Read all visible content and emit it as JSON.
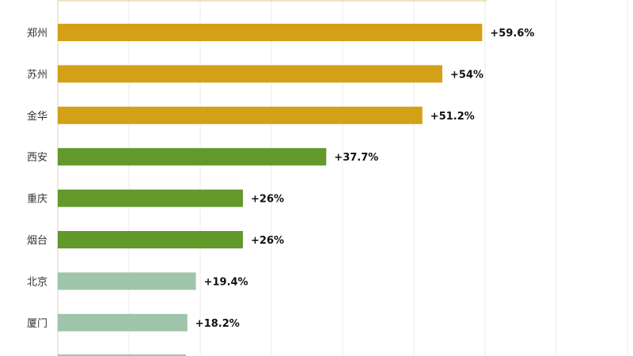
{
  "chart_data": {
    "type": "bar",
    "orientation": "horizontal",
    "categories": [
      "郑州",
      "苏州",
      "金华",
      "西安",
      "重庆",
      "烟台",
      "北京",
      "厦门"
    ],
    "values": [
      59.6,
      54,
      51.2,
      37.7,
      26,
      26,
      19.4,
      18.2
    ],
    "value_labels": [
      "+59.6%",
      "+54%",
      "+51.2%",
      "+37.7%",
      "+26%",
      "+26%",
      "+19.4%",
      "+18.2%"
    ],
    "colors": [
      "#D4A017",
      "#D4A017",
      "#D4A017",
      "#62992A",
      "#62992A",
      "#62992A",
      "#9EC5AA",
      "#9EC5AA"
    ],
    "xlim": [
      0,
      80
    ],
    "grid": true,
    "title": "",
    "xlabel": "",
    "ylabel": ""
  }
}
